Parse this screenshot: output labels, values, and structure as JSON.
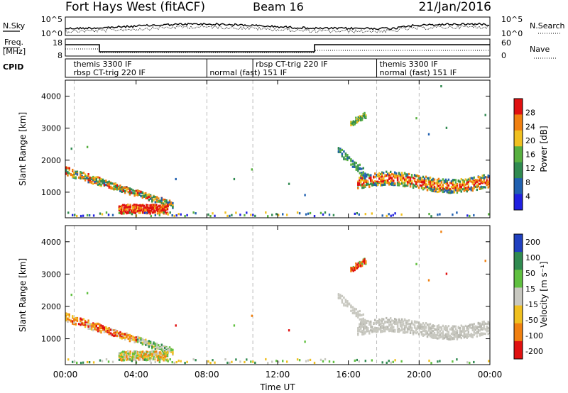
{
  "header": {
    "station": "Fort Hays West (fitACF)",
    "beam": "Beam 16",
    "date": "21/Jan/2016"
  },
  "noise_panel": {
    "left_label": "N.Sky",
    "left_ticks": [
      "10^5",
      "10^0"
    ],
    "right_label": "N.Search",
    "right_ticks": [
      "10^5",
      "10^0"
    ]
  },
  "freq_panel": {
    "left_label_1": "Freq.",
    "left_label_2": "[MHz]",
    "left_ticks": [
      "18",
      "8"
    ],
    "right_label": "Nave",
    "right_ticks": [
      "60",
      "0"
    ]
  },
  "cpid": {
    "label": "CPID",
    "segments": [
      {
        "start_h": 0.3,
        "end_h": 8.0,
        "top": "themis 3300 IF",
        "bottom": "rbsp CT-trig 220 IF"
      },
      {
        "start_h": 8.0,
        "end_h": 10.6,
        "top": "",
        "bottom": "normal (fast) 151 IF"
      },
      {
        "start_h": 10.6,
        "end_h": 17.6,
        "top": "rbsp CT-trig 220 IF",
        "bottom": ""
      },
      {
        "start_h": 17.6,
        "end_h": 24.0,
        "top": "themis 3300 IF",
        "bottom": "normal (fast) 151 IF"
      }
    ]
  },
  "chart_data": [
    {
      "type": "heatmap",
      "title": "Power",
      "xlabel": "Time UT",
      "ylabel": "Slant Range [km]",
      "x_ticks": [
        "00:00",
        "04:00",
        "08:00",
        "12:00",
        "16:00",
        "20:00",
        "00:00"
      ],
      "xlim_hours": [
        0,
        24
      ],
      "ylim": [
        200,
        4500
      ],
      "y_ticks": [
        1000,
        2000,
        3000,
        4000
      ],
      "colorbar": {
        "label": "Power [dB]",
        "ticks": [
          "4",
          "8",
          "12",
          "16",
          "20",
          "24",
          "28"
        ],
        "range": [
          0,
          30
        ],
        "colors": [
          "#2020e0",
          "#2060b0",
          "#308a50",
          "#58b040",
          "#f0c020",
          "#f08010",
          "#e01010"
        ]
      },
      "features": [
        {
          "name": "early band",
          "t": [
            0.0,
            6.0
          ],
          "range_km": [
            1650,
            500
          ],
          "level_db": 14
        },
        {
          "name": "near-range patch",
          "t": [
            3.0,
            5.8
          ],
          "range_km": [
            300,
            650
          ],
          "level_db": 26
        },
        {
          "name": "evening band",
          "t": [
            16.5,
            24.0
          ],
          "range_km": [
            1100,
            1600
          ],
          "level_db": 20
        },
        {
          "name": "far patch",
          "t": [
            16.0,
            17.0
          ],
          "range_km": [
            3100,
            3500
          ],
          "level_db": 12
        }
      ]
    },
    {
      "type": "heatmap",
      "title": "Velocity",
      "xlabel": "Time UT",
      "ylabel": "Slant Range [km]",
      "x_ticks": [
        "00:00",
        "04:00",
        "08:00",
        "12:00",
        "16:00",
        "20:00",
        "00:00"
      ],
      "xlim_hours": [
        0,
        24
      ],
      "ylim": [
        200,
        4500
      ],
      "y_ticks": [
        1000,
        2000,
        3000,
        4000
      ],
      "colorbar": {
        "label": "Velocity [m s⁻¹]",
        "ticks": [
          "200",
          "100",
          "50",
          "15",
          "-15",
          "-50",
          "-100",
          "-200"
        ],
        "colors": [
          "#2040c0",
          "#308a50",
          "#60c040",
          "#c8c8c0",
          "#f0c020",
          "#f08010",
          "#e01010"
        ]
      },
      "features": [
        {
          "name": "early band",
          "t": [
            0.0,
            6.0
          ],
          "range_km": [
            1650,
            500
          ],
          "velocity": -100
        },
        {
          "name": "ground scatter band",
          "t": [
            16.5,
            24.0
          ],
          "range_km": [
            1100,
            1700
          ],
          "velocity": 0
        },
        {
          "name": "far patch",
          "t": [
            16.0,
            17.0
          ],
          "range_km": [
            3100,
            3500
          ],
          "velocity": -200
        }
      ]
    }
  ]
}
